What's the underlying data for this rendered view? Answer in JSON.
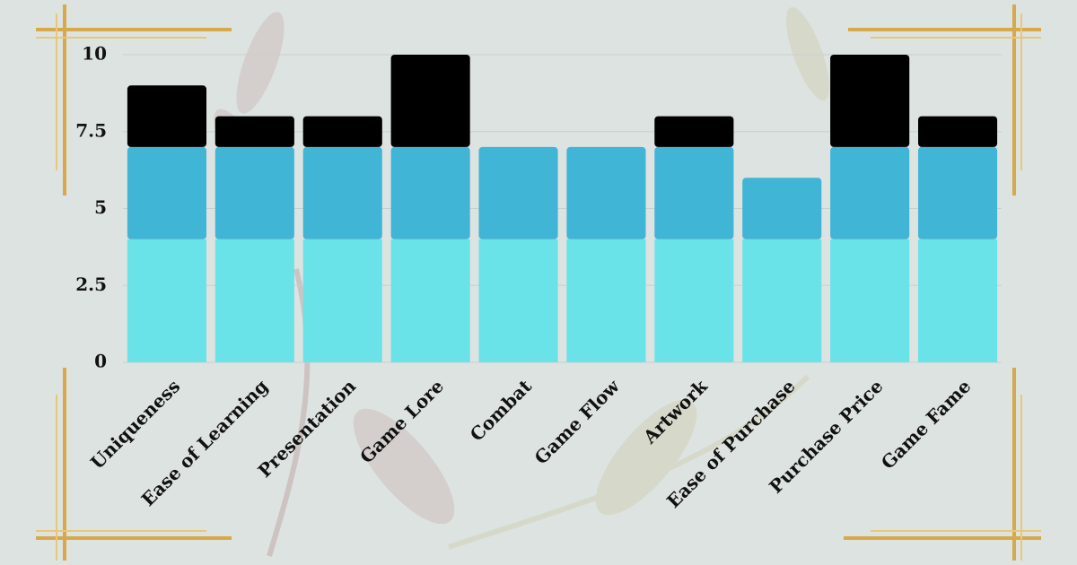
{
  "chart_data": {
    "type": "stacked_bar",
    "categories": [
      "Uniqueness",
      "Ease of Learning",
      "Presentation",
      "Game Lore",
      "Combat",
      "Game Flow",
      "Artwork",
      "Ease of Purchase",
      "Purchase Price",
      "Game Fame"
    ],
    "series": [
      {
        "color": "#69e3e8",
        "values": [
          4,
          4,
          4,
          4,
          4,
          4,
          4,
          4,
          4,
          4
        ]
      },
      {
        "color": "#41b5d5",
        "values": [
          3,
          3,
          3,
          3,
          3,
          3,
          3,
          2,
          3,
          3
        ]
      },
      {
        "color": "#000000",
        "values": [
          2,
          1,
          1,
          3,
          0,
          0,
          1,
          0,
          3,
          1
        ]
      }
    ],
    "ylim": [
      0,
      10
    ],
    "yticks": [
      0,
      2.5,
      5,
      7.5,
      10
    ],
    "grid": true
  }
}
